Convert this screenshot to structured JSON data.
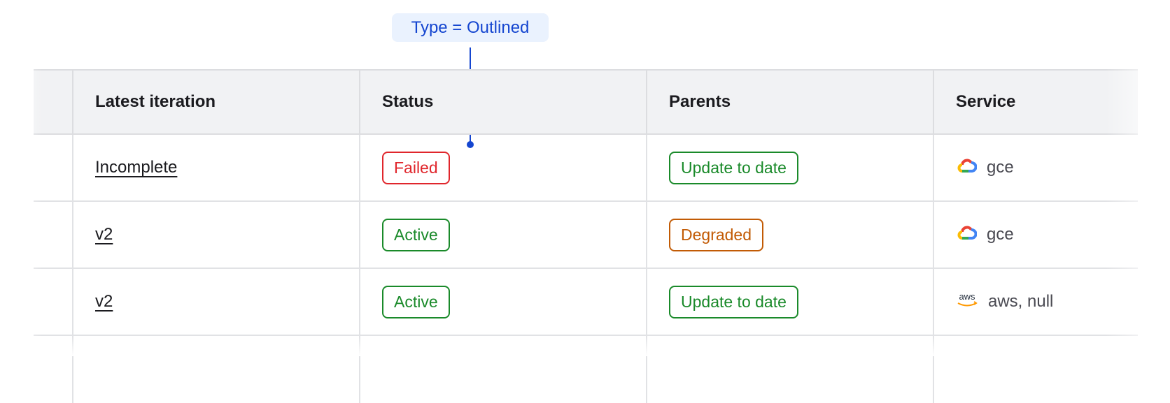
{
  "annotation": {
    "label": "Type = Outlined",
    "color": "#1546d0"
  },
  "table": {
    "columns": [
      "",
      "Latest iteration",
      "Status",
      "Parents",
      "Service"
    ],
    "rows": [
      {
        "iteration": "Incomplete",
        "status": {
          "label": "Failed",
          "color": "#e0262c"
        },
        "parents": {
          "label": "Update to date",
          "color": "#1a8a2a"
        },
        "service": {
          "icon": "google-cloud-icon",
          "label": "gce"
        }
      },
      {
        "iteration": "v2",
        "status": {
          "label": "Active",
          "color": "#1a8a2a"
        },
        "parents": {
          "label": "Degraded",
          "color": "#c25b05"
        },
        "service": {
          "icon": "google-cloud-icon",
          "label": "gce"
        }
      },
      {
        "iteration": "v2",
        "status": {
          "label": "Active",
          "color": "#1a8a2a"
        },
        "parents": {
          "label": "Update to date",
          "color": "#1a8a2a"
        },
        "service": {
          "icon": "aws-icon",
          "label": "aws, null",
          "icon_text": "aws"
        }
      }
    ]
  }
}
